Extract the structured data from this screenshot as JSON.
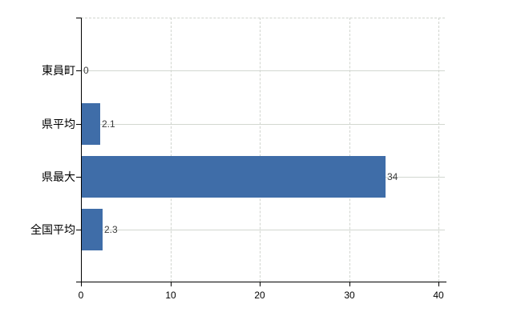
{
  "chart_data": {
    "type": "bar",
    "orientation": "horizontal",
    "title": "",
    "categories": [
      "東員町",
      "県平均",
      "県最大",
      "全国平均"
    ],
    "values": [
      0,
      2.1,
      34,
      2.3
    ],
    "value_labels": [
      "0",
      "2.1",
      "34",
      "2.3"
    ],
    "x_ticks": [
      0,
      10,
      20,
      30,
      40
    ],
    "xlim": [
      0,
      40
    ],
    "grid": true,
    "legend": false,
    "gridline_style": {
      "vertical": "dashed",
      "horizontal": "solid",
      "plot_top_border": "dashed"
    },
    "colors": {
      "background": "#ffffff",
      "bar": "#3f6da8",
      "gridline_solid": "#d2d7d0",
      "gridline_dashed": "#d0d4ce",
      "axis": "#000000",
      "tick_label": "#000000",
      "value_label": "#3b3b3b"
    }
  }
}
